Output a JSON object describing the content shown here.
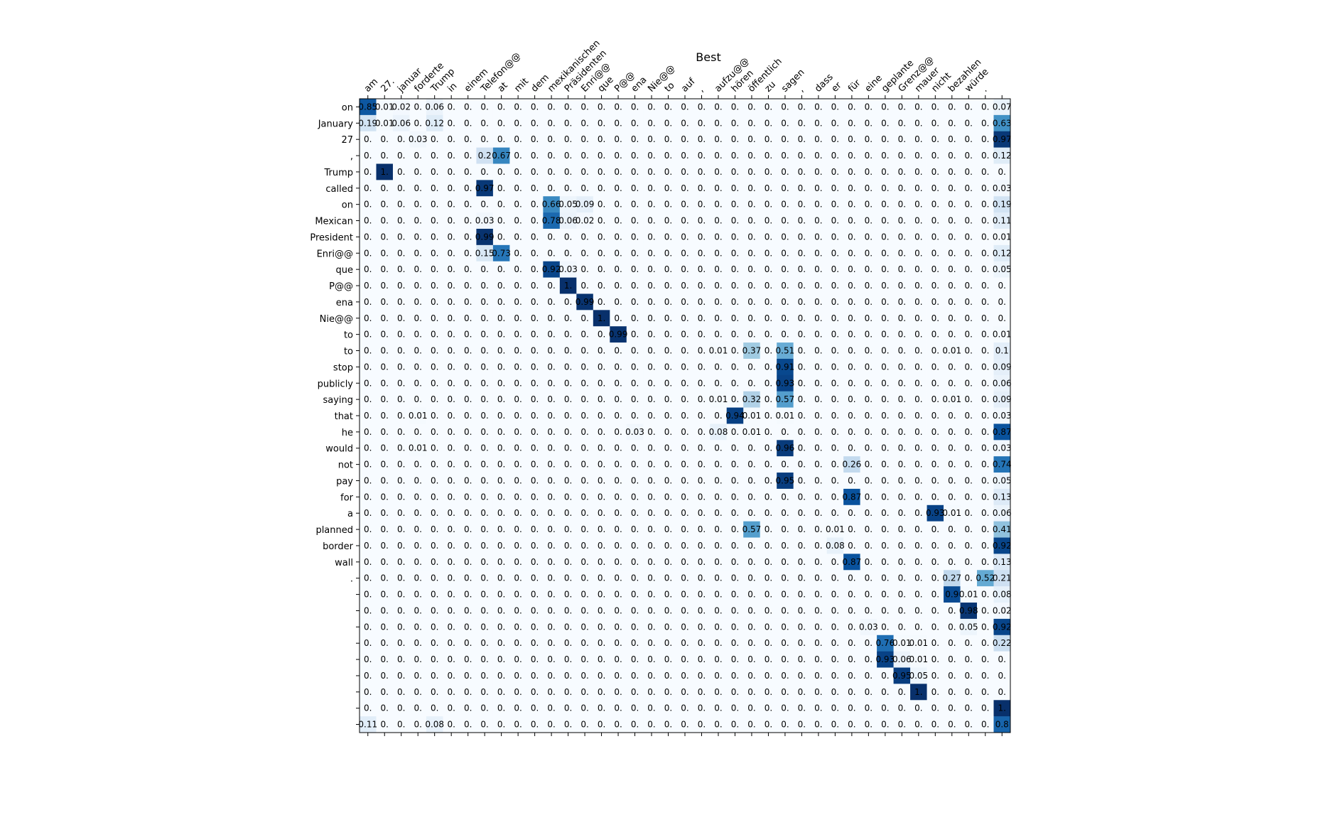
{
  "chart_data": {
    "type": "heatmap",
    "title": "Best",
    "xlabel": "",
    "ylabel": "",
    "grid": false,
    "legend": "none",
    "colormap": "Blues",
    "colors": {
      "low": "#f7fbff",
      "mid": "#6baed6",
      "high": "#08306b"
    },
    "x_labels": [
      "am",
      "27.",
      "januar",
      "forderte",
      "Trump",
      "in",
      "einem",
      "Telefon@@",
      "at",
      "mit",
      "dem",
      "mexikanischen",
      "Präsidenten",
      "Enri@@",
      "que",
      "P@@",
      "ena",
      "Nie@@",
      "to",
      "auf",
      ",",
      "aufzu@@",
      "hören",
      "öffentlich",
      "zu",
      "sagen",
      ",",
      "dass",
      "er",
      "für",
      "eine",
      "geplante",
      "Grenz@@",
      "mauer",
      "nicht",
      "bezahlen",
      "würde",
      ".",
      ""
    ],
    "y_labels": [
      "on",
      "January",
      "27",
      ",",
      "Trump",
      "called",
      "on",
      "Mexican",
      "President",
      "Enri@@",
      "que",
      "P@@",
      "ena",
      "Nie@@",
      "to",
      "to",
      "stop",
      "publicly",
      "saying",
      "that",
      "he",
      "would",
      "not",
      "pay",
      "for",
      "a",
      "planned",
      "border",
      "wall",
      ".",
      "",
      "",
      "",
      "",
      "",
      "",
      "",
      "",
      ""
    ],
    "nonzero": [
      [
        0,
        0,
        0.85,
        "0.85"
      ],
      [
        0,
        1,
        0.01,
        "0.01"
      ],
      [
        0,
        2,
        0.02,
        "0.02"
      ],
      [
        0,
        4,
        0.06,
        "0.06"
      ],
      [
        0,
        38,
        0.07,
        "0.07"
      ],
      [
        1,
        0,
        0.19,
        "0.19"
      ],
      [
        1,
        1,
        0.01,
        "0.01"
      ],
      [
        1,
        2,
        0.06,
        "0.06"
      ],
      [
        1,
        4,
        0.12,
        "0.12"
      ],
      [
        1,
        38,
        0.63,
        "0.63"
      ],
      [
        2,
        3,
        0.03,
        "0.03"
      ],
      [
        2,
        38,
        0.97,
        "0.97"
      ],
      [
        3,
        7,
        0.2,
        "0.2"
      ],
      [
        3,
        8,
        0.67,
        "0.67"
      ],
      [
        3,
        38,
        0.12,
        "0.12"
      ],
      [
        4,
        1,
        1.0,
        "1."
      ],
      [
        5,
        7,
        0.97,
        "0.97"
      ],
      [
        5,
        38,
        0.03,
        "0.03"
      ],
      [
        6,
        11,
        0.66,
        "0.66"
      ],
      [
        6,
        12,
        0.05,
        "0.05"
      ],
      [
        6,
        13,
        0.09,
        "0.09"
      ],
      [
        6,
        38,
        0.19,
        "0.19"
      ],
      [
        7,
        7,
        0.03,
        "0.03"
      ],
      [
        7,
        11,
        0.78,
        "0.78"
      ],
      [
        7,
        12,
        0.06,
        "0.06"
      ],
      [
        7,
        13,
        0.02,
        "0.02"
      ],
      [
        7,
        38,
        0.11,
        "0.11"
      ],
      [
        8,
        7,
        0.99,
        "0.99"
      ],
      [
        8,
        38,
        0.01,
        "0.01"
      ],
      [
        9,
        7,
        0.15,
        "0.15"
      ],
      [
        9,
        8,
        0.73,
        "0.73"
      ],
      [
        9,
        38,
        0.12,
        "0.12"
      ],
      [
        10,
        11,
        0.92,
        "0.92"
      ],
      [
        10,
        12,
        0.03,
        "0.03"
      ],
      [
        10,
        38,
        0.05,
        "0.05"
      ],
      [
        11,
        12,
        1.0,
        "1."
      ],
      [
        12,
        13,
        0.99,
        "0.99"
      ],
      [
        13,
        14,
        1.0,
        "1."
      ],
      [
        14,
        15,
        0.99,
        "0.99"
      ],
      [
        14,
        38,
        0.01,
        "0.01"
      ],
      [
        15,
        21,
        0.01,
        "0.01"
      ],
      [
        15,
        23,
        0.37,
        "0.37"
      ],
      [
        15,
        25,
        0.51,
        "0.51"
      ],
      [
        15,
        35,
        0.01,
        "0.01"
      ],
      [
        15,
        38,
        0.1,
        "0.1"
      ],
      [
        16,
        25,
        0.91,
        "0.91"
      ],
      [
        16,
        38,
        0.09,
        "0.09"
      ],
      [
        17,
        25,
        0.93,
        "0.93"
      ],
      [
        17,
        38,
        0.06,
        "0.06"
      ],
      [
        18,
        21,
        0.01,
        "0.01"
      ],
      [
        18,
        23,
        0.32,
        "0.32"
      ],
      [
        18,
        25,
        0.57,
        "0.57"
      ],
      [
        18,
        35,
        0.01,
        "0.01"
      ],
      [
        18,
        38,
        0.09,
        "0.09"
      ],
      [
        19,
        3,
        0.01,
        "0.01"
      ],
      [
        19,
        22,
        0.94,
        "0.94"
      ],
      [
        19,
        23,
        0.01,
        "0.01"
      ],
      [
        19,
        25,
        0.01,
        "0.01"
      ],
      [
        19,
        38,
        0.03,
        "0.03"
      ],
      [
        20,
        16,
        0.03,
        "0.03"
      ],
      [
        20,
        21,
        0.08,
        "0.08"
      ],
      [
        20,
        23,
        0.01,
        "0.01"
      ],
      [
        20,
        38,
        0.87,
        "0.87"
      ],
      [
        21,
        3,
        0.01,
        "0.01"
      ],
      [
        21,
        25,
        0.96,
        "0.96"
      ],
      [
        21,
        38,
        0.03,
        "0.03"
      ],
      [
        22,
        29,
        0.26,
        "0.26"
      ],
      [
        22,
        38,
        0.74,
        "0.74"
      ],
      [
        23,
        25,
        0.95,
        "0.95"
      ],
      [
        23,
        38,
        0.05,
        "0.05"
      ],
      [
        24,
        29,
        0.87,
        "0.87"
      ],
      [
        24,
        38,
        0.13,
        "0.13"
      ],
      [
        25,
        34,
        0.93,
        "0.93"
      ],
      [
        25,
        35,
        0.01,
        "0.01"
      ],
      [
        25,
        38,
        0.06,
        "0.06"
      ],
      [
        26,
        23,
        0.57,
        "0.57"
      ],
      [
        26,
        28,
        0.01,
        "0.01"
      ],
      [
        26,
        38,
        0.41,
        "0.41"
      ],
      [
        27,
        28,
        0.08,
        "0.08"
      ],
      [
        27,
        38,
        0.92,
        "0.92"
      ],
      [
        28,
        29,
        0.87,
        "0.87"
      ],
      [
        28,
        38,
        0.13,
        "0.13"
      ],
      [
        29,
        35,
        0.27,
        "0.27"
      ],
      [
        29,
        37,
        0.52,
        "0.52"
      ],
      [
        29,
        38,
        0.21,
        "0.21"
      ],
      [
        30,
        35,
        0.9,
        "0.9"
      ],
      [
        30,
        36,
        0.01,
        "0.01"
      ],
      [
        30,
        38,
        0.08,
        "0.08"
      ],
      [
        31,
        36,
        0.98,
        "0.98"
      ],
      [
        31,
        38,
        0.02,
        "0.02"
      ],
      [
        32,
        30,
        0.03,
        "0.03"
      ],
      [
        32,
        36,
        0.05,
        "0.05"
      ],
      [
        32,
        38,
        0.92,
        "0.92"
      ],
      [
        33,
        31,
        0.76,
        "0.76"
      ],
      [
        33,
        32,
        0.01,
        "0.01"
      ],
      [
        33,
        33,
        0.01,
        "0.01"
      ],
      [
        33,
        38,
        0.22,
        "0.22"
      ],
      [
        34,
        31,
        0.93,
        "0.93"
      ],
      [
        34,
        32,
        0.06,
        "0.06"
      ],
      [
        34,
        33,
        0.01,
        "0.01"
      ],
      [
        35,
        32,
        0.95,
        "0.95"
      ],
      [
        35,
        33,
        0.05,
        "0.05"
      ],
      [
        36,
        33,
        1.0,
        "1."
      ],
      [
        37,
        38,
        1.0,
        "1."
      ],
      [
        38,
        0,
        0.11,
        "0.11"
      ],
      [
        38,
        4,
        0.08,
        "0.08"
      ],
      [
        38,
        38,
        0.8,
        "0.8"
      ]
    ],
    "zero_label": "0."
  }
}
